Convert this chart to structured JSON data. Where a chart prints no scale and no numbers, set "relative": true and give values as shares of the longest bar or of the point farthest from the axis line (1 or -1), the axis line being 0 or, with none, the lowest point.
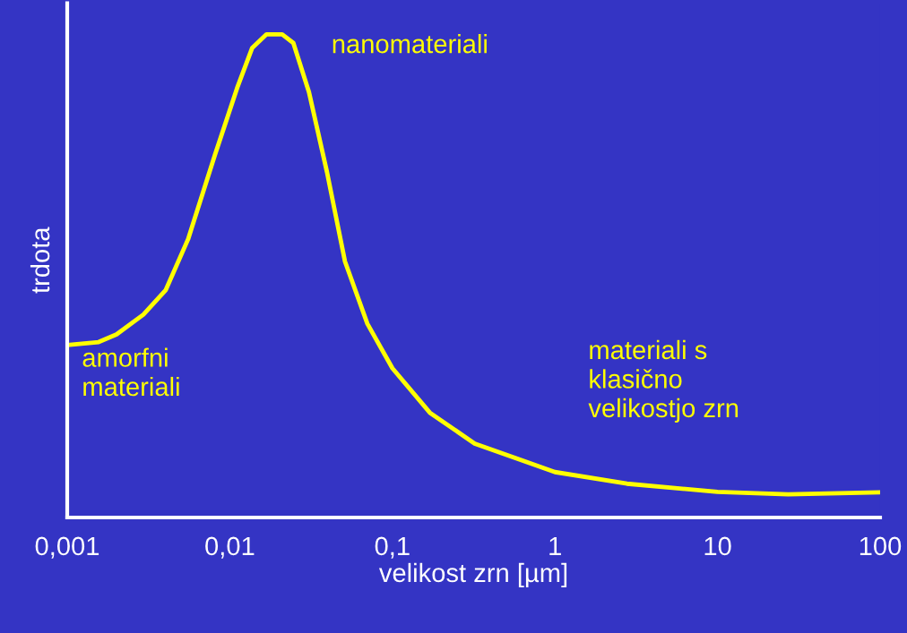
{
  "chart_data": {
    "type": "line",
    "relative": true,
    "log": "x",
    "xlabel": "velikost zrn [µm]",
    "ylabel": "trdota",
    "xlim": [
      0.001,
      100
    ],
    "xticks": [
      {
        "value": 0.001,
        "label": "0,001"
      },
      {
        "value": 0.01,
        "label": "0,01"
      },
      {
        "value": 0.1,
        "label": "0,1"
      },
      1,
      10,
      100
    ],
    "series": [
      {
        "color": "#ffff00",
        "x": [
          0.001,
          0.00156,
          0.00201,
          0.00294,
          0.00404,
          0.00554,
          0.00811,
          0.0111,
          0.01374,
          0.01683,
          0.021,
          0.0246,
          0.0307,
          0.0396,
          0.0511,
          0.0702,
          0.1,
          0.17,
          0.321,
          1,
          2.77,
          10,
          27.2,
          100
        ],
        "values": [
          0.357,
          0.363,
          0.379,
          0.42,
          0.471,
          0.576,
          0.751,
          0.889,
          0.972,
          1.0,
          1.0,
          0.982,
          0.88,
          0.715,
          0.53,
          0.401,
          0.309,
          0.217,
          0.153,
          0.094,
          0.07,
          0.053,
          0.048,
          0.052
        ]
      }
    ],
    "annotations": [
      "nanomateriali",
      "amorfni\nmateriali",
      "materiali s\nklasično\nvelikostjo zrn"
    ],
    "grid": false,
    "legend": false,
    "marker": "none",
    "line_style": "solid"
  }
}
